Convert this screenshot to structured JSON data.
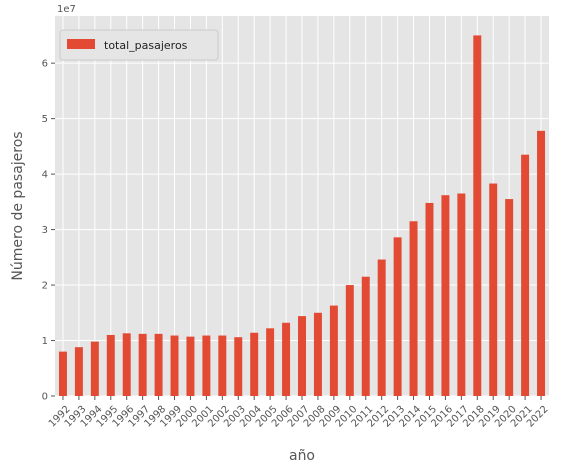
{
  "chart_data": {
    "type": "bar",
    "title": "",
    "xlabel": "año",
    "ylabel": "Número de pasajeros",
    "y_offset_label": "1e7",
    "y_scale": 10000000,
    "ylim": [
      0,
      6.85
    ],
    "yticks": [
      0,
      1,
      2,
      3,
      4,
      5,
      6
    ],
    "grid": true,
    "legend_position": "top-left",
    "bar_color": "#E24A33",
    "background_color": "#E5E5E5",
    "grid_color": "#FFFFFF",
    "categories": [
      "1992",
      "1993",
      "1994",
      "1995",
      "1996",
      "1997",
      "1998",
      "1999",
      "2000",
      "2001",
      "2002",
      "2003",
      "2004",
      "2005",
      "2006",
      "2007",
      "2008",
      "2009",
      "2010",
      "2011",
      "2012",
      "2013",
      "2014",
      "2015",
      "2016",
      "2017",
      "2018",
      "2019",
      "2020",
      "2021",
      "2022"
    ],
    "series": [
      {
        "name": "total_pasajeros",
        "values": [
          0.8,
          0.88,
          0.98,
          1.1,
          1.13,
          1.12,
          1.12,
          1.09,
          1.07,
          1.09,
          1.09,
          1.06,
          1.14,
          1.22,
          1.32,
          1.44,
          1.5,
          1.63,
          2.0,
          2.15,
          2.46,
          2.86,
          3.15,
          3.48,
          3.62,
          3.65,
          6.5,
          3.83,
          3.55,
          4.35,
          4.78
        ]
      }
    ]
  }
}
